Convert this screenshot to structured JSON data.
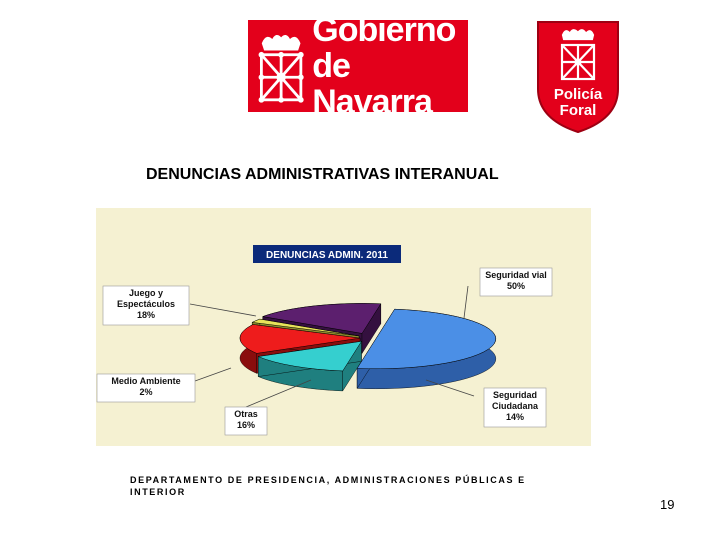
{
  "logo_left": {
    "line1": "Gobierno",
    "line2": "de Navarra"
  },
  "logo_right": {
    "line1": "Policía",
    "line2": "Foral"
  },
  "slide_title": "DENUNCIAS ADMINISTRATIVAS INTERANUAL",
  "footer_text": "DEPARTAMENTO DE PRESIDENCIA, ADMINISTRACIONES PÚBLICAS E INTERIOR",
  "page_number": "19",
  "colors": {
    "brand_red": "#e3001b",
    "chart_background": "#f5f1d2"
  },
  "chart_data": {
    "type": "pie",
    "title": "DENUNCIAS ADMIN. 2011",
    "series": [
      {
        "label_lines": [
          "Seguridad vial",
          "50%"
        ],
        "value": 50,
        "color": "#4b8fe6",
        "side": "#2e5fa8"
      },
      {
        "label_lines": [
          "Seguridad",
          "Ciudadana",
          "14%"
        ],
        "value": 14,
        "color": "#35cfcf",
        "side": "#1f7f7f"
      },
      {
        "label_lines": [
          "Otras",
          "16%"
        ],
        "value": 16,
        "color": "#ee1c1c",
        "side": "#8a0d0d"
      },
      {
        "label_lines": [
          "Medio Ambiente",
          "2%"
        ],
        "value": 2,
        "color": "#e8e35a",
        "side": "#8c8a2c"
      },
      {
        "label_lines": [
          "Juego y",
          "Espectáculos",
          "18%"
        ],
        "value": 18,
        "color": "#5c1f6e",
        "side": "#34103f"
      }
    ],
    "style": "3d-exploded"
  }
}
